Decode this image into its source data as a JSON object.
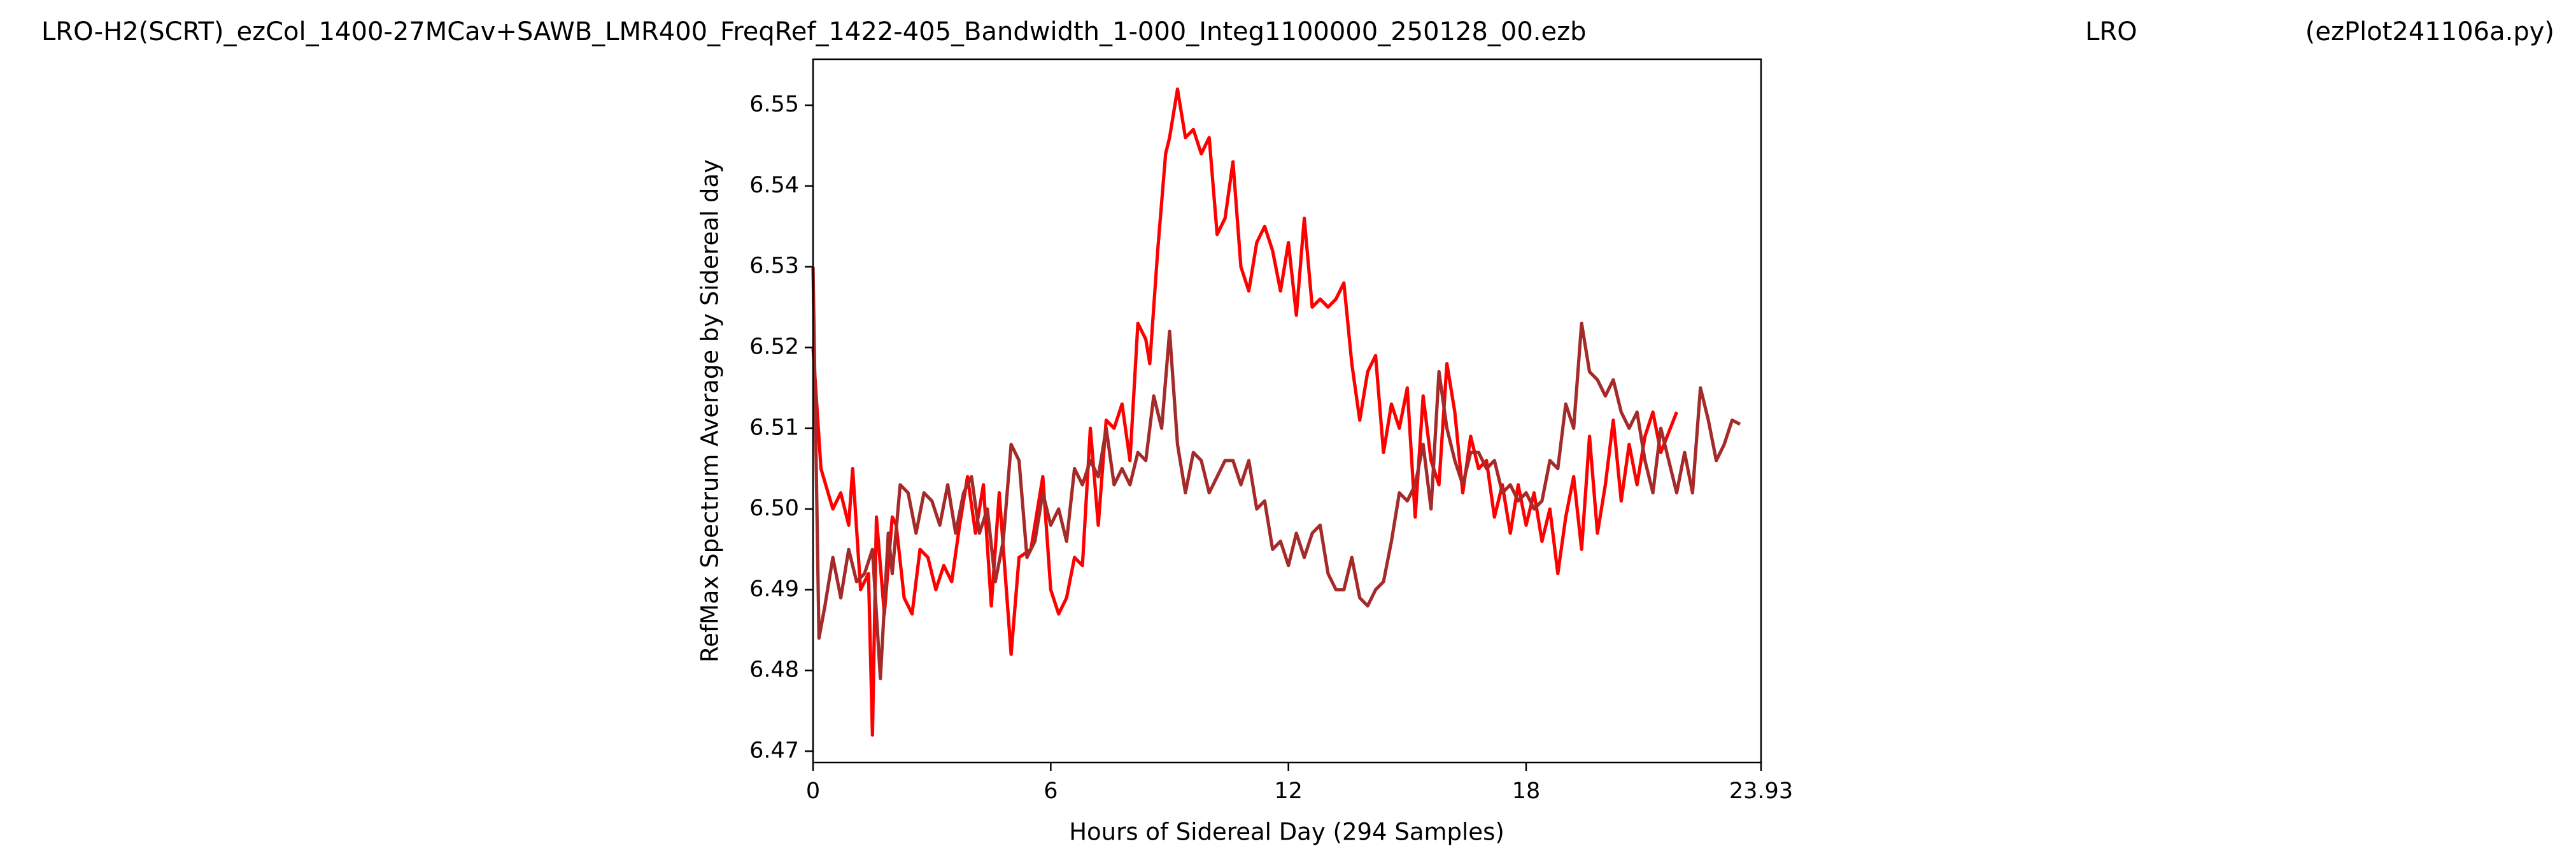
{
  "chart_data": {
    "type": "line",
    "title": [
      "LRO-H2(SCRT)_ezCol_1400-27MCav+SAWB_LMR400_FreqRef_1422-405_Bandwidth_1-000_Integ1100000_250128_00.ezb",
      "LRO",
      "(ezPlot241106a.py)"
    ],
    "x_label": "Hours of Sidereal Day  (294 Samples)",
    "y_label": "RefMax Spectrum Average by Sidereal day",
    "xlim": [
      0,
      23.93
    ],
    "xticks": [
      0,
      6,
      12,
      18,
      23.93
    ],
    "ylim": [
      6.4686,
      6.5557
    ],
    "yticks": [
      6.47,
      6.48,
      6.49,
      {
        "value": 6.5,
        "label": "6.50"
      },
      6.51,
      6.52,
      6.53,
      6.54,
      6.55
    ],
    "grid": false,
    "series": [
      {
        "color": "#ff0000",
        "x": [
          0,
          0.2,
          0.5,
          0.7,
          0.9,
          1.0,
          1.2,
          1.4,
          1.5,
          1.6,
          1.8,
          2.0,
          2.1,
          2.3,
          2.5,
          2.7,
          2.9,
          3.1,
          3.3,
          3.5,
          3.7,
          3.9,
          4.1,
          4.3,
          4.5,
          4.7,
          5.0,
          5.2,
          5.5,
          5.8,
          6.0,
          6.2,
          6.4,
          6.6,
          6.8,
          7.0,
          7.2,
          7.4,
          7.6,
          7.8,
          8.0,
          8.2,
          8.4,
          8.5,
          8.7,
          8.9,
          9.0,
          9.2,
          9.4,
          9.6,
          9.8,
          10.0,
          10.2,
          10.4,
          10.6,
          10.8,
          11.0,
          11.2,
          11.4,
          11.6,
          11.8,
          12.0,
          12.2,
          12.4,
          12.6,
          12.8,
          13.0,
          13.2,
          13.4,
          13.6,
          13.8,
          14.0,
          14.2,
          14.4,
          14.6,
          14.8,
          15.0,
          15.2,
          15.4,
          15.6,
          15.8,
          16.0,
          16.2,
          16.4,
          16.6,
          16.8,
          17.0,
          17.2,
          17.4,
          17.6,
          17.8,
          18.0,
          18.2,
          18.4,
          18.6,
          18.8,
          19.0,
          19.2,
          19.4,
          19.6,
          19.8,
          20.0,
          20.2,
          20.4,
          20.6,
          20.8,
          21.0,
          21.2,
          21.4,
          21.8
        ],
        "values": [
          6.52,
          6.505,
          6.5,
          6.502,
          6.498,
          6.505,
          6.49,
          6.492,
          6.472,
          6.499,
          6.487,
          6.499,
          6.498,
          6.489,
          6.487,
          6.495,
          6.494,
          6.49,
          6.493,
          6.491,
          6.498,
          6.504,
          6.497,
          6.503,
          6.488,
          6.502,
          6.482,
          6.494,
          6.495,
          6.504,
          6.49,
          6.487,
          6.489,
          6.494,
          6.493,
          6.51,
          6.498,
          6.511,
          6.51,
          6.513,
          6.506,
          6.523,
          6.521,
          6.518,
          6.532,
          6.544,
          6.546,
          6.552,
          6.546,
          6.547,
          6.544,
          6.546,
          6.534,
          6.536,
          6.543,
          6.53,
          6.527,
          6.533,
          6.535,
          6.532,
          6.527,
          6.533,
          6.524,
          6.536,
          6.525,
          6.526,
          6.525,
          6.526,
          6.528,
          6.518,
          6.511,
          6.517,
          6.519,
          6.507,
          6.513,
          6.51,
          6.515,
          6.499,
          6.514,
          6.506,
          6.503,
          6.518,
          6.512,
          6.502,
          6.509,
          6.505,
          6.506,
          6.499,
          6.503,
          6.497,
          6.503,
          6.498,
          6.502,
          6.496,
          6.5,
          6.492,
          6.499,
          6.504,
          6.495,
          6.509,
          6.497,
          6.503,
          6.511,
          6.501,
          6.508,
          6.503,
          6.509,
          6.512,
          6.507,
          6.512
        ]
      },
      {
        "color": "#a52a2a",
        "x": [
          0,
          0.15,
          0.3,
          0.5,
          0.7,
          0.9,
          1.1,
          1.3,
          1.5,
          1.7,
          1.9,
          2.0,
          2.2,
          2.4,
          2.6,
          2.8,
          3.0,
          3.2,
          3.4,
          3.6,
          3.8,
          4.0,
          4.2,
          4.4,
          4.6,
          4.8,
          5.0,
          5.2,
          5.4,
          5.6,
          5.8,
          6.0,
          6.2,
          6.4,
          6.6,
          6.8,
          7.0,
          7.2,
          7.4,
          7.6,
          7.8,
          8.0,
          8.2,
          8.4,
          8.6,
          8.8,
          9.0,
          9.2,
          9.4,
          9.6,
          9.8,
          10.0,
          10.2,
          10.4,
          10.6,
          10.8,
          11.0,
          11.2,
          11.4,
          11.6,
          11.8,
          12.0,
          12.2,
          12.4,
          12.6,
          12.8,
          13.0,
          13.2,
          13.4,
          13.6,
          13.8,
          14.0,
          14.2,
          14.4,
          14.6,
          14.8,
          15.0,
          15.2,
          15.4,
          15.6,
          15.8,
          16.0,
          16.2,
          16.4,
          16.6,
          16.8,
          17.0,
          17.2,
          17.4,
          17.6,
          17.8,
          18.0,
          18.2,
          18.4,
          18.6,
          18.8,
          19.0,
          19.2,
          19.4,
          19.6,
          19.8,
          20.0,
          20.2,
          20.4,
          20.6,
          20.8,
          21.0,
          21.2,
          21.4,
          21.6,
          21.8,
          22.0,
          22.2,
          22.4,
          22.6,
          22.8,
          23.0,
          23.2,
          23.4
        ],
        "values": [
          6.53,
          6.484,
          6.488,
          6.494,
          6.489,
          6.495,
          6.491,
          6.492,
          6.495,
          6.479,
          6.497,
          6.492,
          6.503,
          6.502,
          6.497,
          6.502,
          6.501,
          6.498,
          6.503,
          6.497,
          6.502,
          6.504,
          6.497,
          6.5,
          6.491,
          6.496,
          6.508,
          6.506,
          6.494,
          6.496,
          6.502,
          6.498,
          6.5,
          6.496,
          6.505,
          6.503,
          6.506,
          6.504,
          6.51,
          6.503,
          6.505,
          6.503,
          6.507,
          6.506,
          6.514,
          6.51,
          6.522,
          6.508,
          6.502,
          6.507,
          6.506,
          6.502,
          6.504,
          6.506,
          6.506,
          6.503,
          6.506,
          6.5,
          6.501,
          6.495,
          6.496,
          6.493,
          6.497,
          6.494,
          6.497,
          6.498,
          6.492,
          6.49,
          6.49,
          6.494,
          6.489,
          6.488,
          6.49,
          6.491,
          6.496,
          6.502,
          6.501,
          6.503,
          6.508,
          6.5,
          6.517,
          6.51,
          6.506,
          6.503,
          6.507,
          6.507,
          6.505,
          6.506,
          6.502,
          6.503,
          6.501,
          6.502,
          6.5,
          6.501,
          6.506,
          6.505,
          6.513,
          6.51,
          6.523,
          6.517,
          6.516,
          6.514,
          6.516,
          6.512,
          6.51,
          6.512,
          6.506,
          6.502,
          6.51,
          6.506,
          6.502,
          6.507,
          6.502,
          6.515,
          6.511,
          6.506,
          6.508,
          6.511,
          6.5105
        ]
      }
    ]
  }
}
